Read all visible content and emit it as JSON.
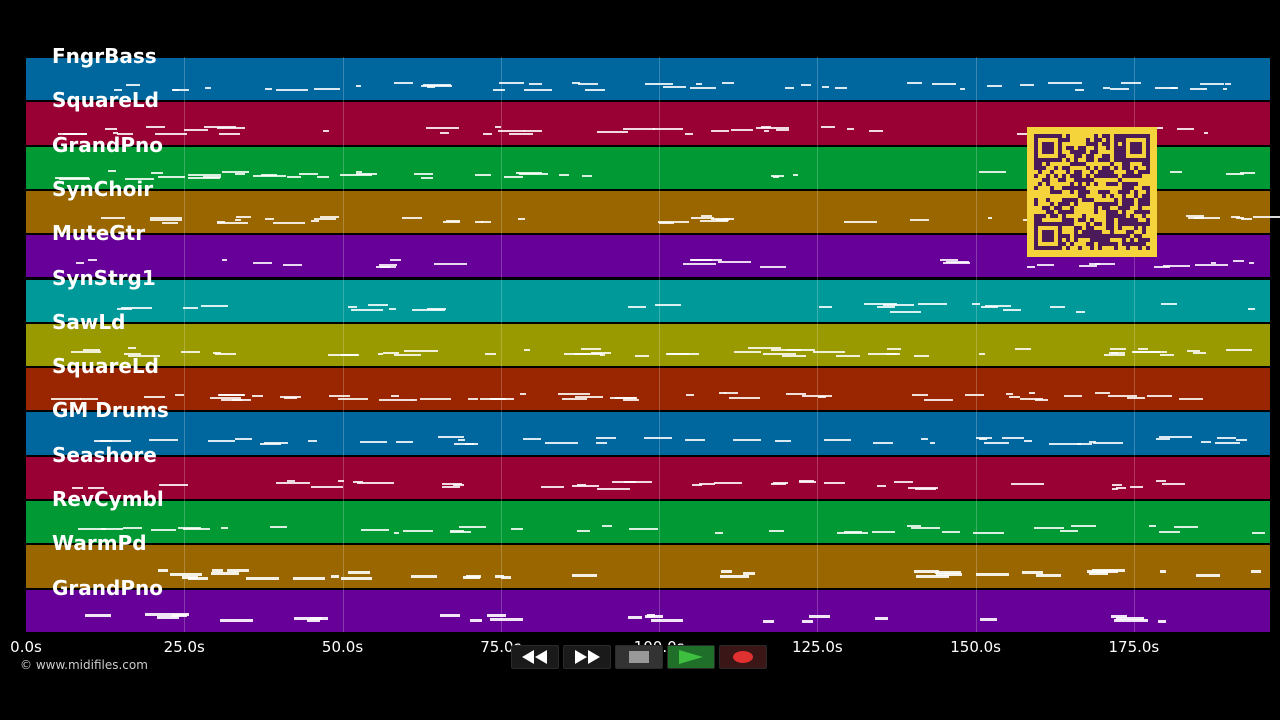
{
  "copyright": "© www.midifiles.com",
  "axis": {
    "ticks": [
      "0.0s",
      "25.0s",
      "50.0s",
      "75.0s",
      "100.0s",
      "125.0s",
      "150.0s",
      "175.0s"
    ],
    "tick_values_seconds": [
      0,
      25,
      50,
      75,
      100,
      125,
      150,
      175
    ],
    "max_seconds": 196.5
  },
  "tracks": [
    {
      "name": "FngrBass",
      "color": "#00679e"
    },
    {
      "name": "SquareLd",
      "color": "#990033"
    },
    {
      "name": "GrandPno",
      "color": "#009933"
    },
    {
      "name": "SynChoir",
      "color": "#996600"
    },
    {
      "name": "MuteGtr",
      "color": "#660099"
    },
    {
      "name": "SynStrg1",
      "color": "#009999"
    },
    {
      "name": "SawLd",
      "color": "#999900"
    },
    {
      "name": "SquareLd",
      "color": "#992600"
    },
    {
      "name": "GM Drums",
      "color": "#00679e"
    },
    {
      "name": "Seashore",
      "color": "#990033"
    },
    {
      "name": "RevCymbl",
      "color": "#009933"
    },
    {
      "name": "WarmPd",
      "color": "#996600"
    },
    {
      "name": "GrandPno",
      "color": "#660099"
    }
  ],
  "transport": {
    "buttons": [
      "rewind-icon",
      "fast-forward-icon",
      "stop-icon",
      "play-icon",
      "record-icon"
    ],
    "play_color": "#3fbf3f",
    "record_color": "#e03030"
  },
  "qr": {
    "color": "#f5d33a",
    "dark": "#4b1a5a"
  }
}
